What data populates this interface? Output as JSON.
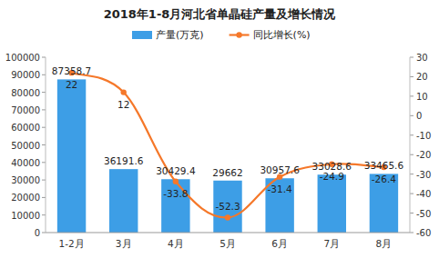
{
  "chart_data": {
    "type": "bar",
    "title": "2018年1-8月河北省单晶硅产量及增长情况",
    "categories": [
      "1-2月",
      "3月",
      "4月",
      "5月",
      "6月",
      "7月",
      "8月"
    ],
    "series": [
      {
        "name": "产量(万克)",
        "type": "bar",
        "color": "#3d9ee6",
        "values": [
          87358.7,
          36191.6,
          30429.4,
          29662,
          30957.6,
          33028.6,
          33465.6
        ]
      },
      {
        "name": "同比增长(%)",
        "type": "line",
        "axis": "y2",
        "color": "#f5782a",
        "marker": "circle",
        "line_style": "smooth",
        "values": [
          22,
          12,
          -33.8,
          -52.3,
          -31.4,
          -24.9,
          -26.4
        ]
      }
    ],
    "ylim": [
      0,
      100000
    ],
    "yticks": [
      0,
      10000,
      20000,
      30000,
      40000,
      50000,
      60000,
      70000,
      80000,
      90000,
      100000
    ],
    "y2lim": [
      -60,
      30
    ],
    "y2ticks": [
      -60,
      -50,
      -40,
      -30,
      -20,
      -10,
      0,
      10,
      20,
      30
    ],
    "grid": false,
    "legend": "top",
    "data_labels": true
  }
}
